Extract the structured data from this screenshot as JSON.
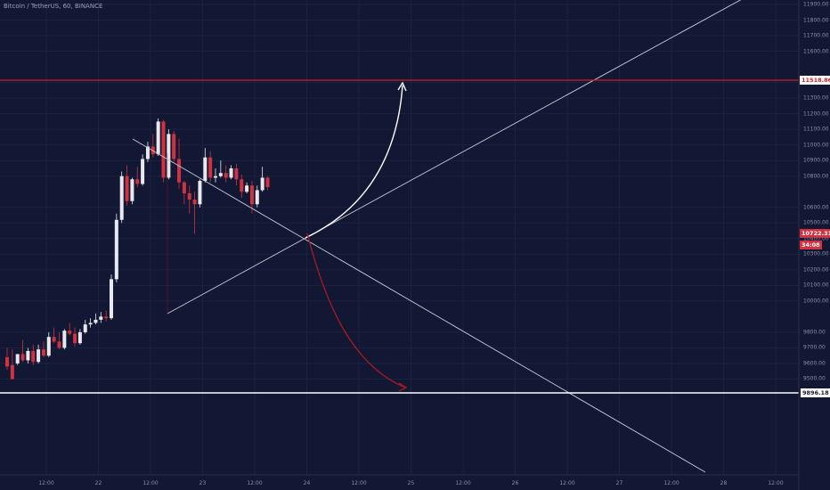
{
  "title": "Bitcoin / TetherUS, 60, BINANCE",
  "colors": {
    "background": "#121733",
    "bull": "#e7e9ef",
    "bear": "#d0333f",
    "resistance": "#c8202c",
    "support": "#ffffff",
    "trendline": "#c7cad6",
    "bull_arrow": "#ffffff",
    "bear_arrow": "#a11a22",
    "current_price_tag": "#d0333f"
  },
  "y_axis": {
    "ticks": [
      "11900.00",
      "11800.00",
      "11700.00",
      "11600.00",
      "11400.00",
      "11300.00",
      "11200.00",
      "11100.00",
      "11000.00",
      "10900.00",
      "10800.00",
      "10600.00",
      "10500.00",
      "10400.00",
      "10300.00",
      "10200.00",
      "10100.00",
      "10000.00",
      "9800.00",
      "9700.00",
      "9600.00",
      "9500.00"
    ]
  },
  "x_axis": {
    "ticks": [
      "12:00",
      "22",
      "12:00",
      "23",
      "12:00",
      "24",
      "12:00",
      "25",
      "12:00",
      "26",
      "12:00",
      "27",
      "12:00",
      "28",
      "12:00"
    ]
  },
  "levels": {
    "resistance": {
      "label": "11518.86",
      "price": 11518.86
    },
    "support": {
      "label": "9896.18",
      "price": 9896.18
    },
    "current": {
      "label": "10722.31",
      "price": 10722.31,
      "countdown": "34:08"
    }
  },
  "candles": [
    [
      9640,
      9700,
      9580,
      9560
    ],
    [
      9590,
      9690,
      9500,
      9530
    ],
    [
      9600,
      9660,
      9660,
      9590
    ],
    [
      9660,
      9750,
      9620,
      9610
    ],
    [
      9620,
      9700,
      9680,
      9600
    ],
    [
      9680,
      9720,
      9610,
      9590
    ],
    [
      9610,
      9720,
      9690,
      9600
    ],
    [
      9690,
      9740,
      9650,
      9640
    ],
    [
      9650,
      9800,
      9770,
      9640
    ],
    [
      9770,
      9830,
      9740,
      9730
    ],
    [
      9740,
      9800,
      9700,
      9690
    ],
    [
      9700,
      9820,
      9810,
      9690
    ],
    [
      9810,
      9860,
      9790,
      9780
    ],
    [
      9790,
      9830,
      9730,
      9710
    ],
    [
      9730,
      9820,
      9800,
      9720
    ],
    [
      9800,
      9880,
      9850,
      9790
    ],
    [
      9850,
      9890,
      9860,
      9830
    ],
    [
      9860,
      9920,
      9880,
      9850
    ],
    [
      9880,
      9930,
      9900,
      9860
    ],
    [
      9900,
      9940,
      9890,
      9870
    ],
    [
      9890,
      10170,
      10140,
      9880
    ],
    [
      10140,
      10560,
      10520,
      10120
    ],
    [
      10520,
      10830,
      10800,
      10500
    ],
    [
      10800,
      10870,
      10640,
      10610
    ],
    [
      10640,
      10790,
      10780,
      10620
    ],
    [
      10780,
      10860,
      10750,
      10730
    ],
    [
      10750,
      10940,
      10910,
      10740
    ],
    [
      10910,
      11020,
      10990,
      10890
    ],
    [
      10990,
      11070,
      10940,
      10920
    ],
    [
      10940,
      11170,
      11150,
      10930
    ],
    [
      11150,
      11160,
      10790,
      10760
    ],
    [
      10790,
      11100,
      11070,
      10780
    ],
    [
      11070,
      11090,
      10910,
      10890
    ],
    [
      10910,
      11040,
      10760,
      10720
    ],
    [
      10760,
      10770,
      10690,
      10620
    ],
    [
      10690,
      10740,
      10650,
      10560
    ],
    [
      10650,
      10700,
      10620,
      10430
    ],
    [
      10620,
      10780,
      10770,
      10600
    ],
    [
      10770,
      10980,
      10920,
      10760
    ],
    [
      10920,
      10960,
      10790,
      10760
    ],
    [
      10790,
      10850,
      10800,
      10760
    ],
    [
      10800,
      10900,
      10820,
      10790
    ],
    [
      10820,
      10870,
      10790,
      10760
    ],
    [
      10790,
      10870,
      10850,
      10780
    ],
    [
      10850,
      10880,
      10780,
      10740
    ],
    [
      10780,
      10810,
      10700,
      10660
    ],
    [
      10700,
      10760,
      10740,
      10690
    ],
    [
      10740,
      10770,
      10620,
      10560
    ],
    [
      10620,
      10740,
      10710,
      10600
    ],
    [
      10710,
      10860,
      10790,
      10700
    ],
    [
      10790,
      10800,
      10730,
      10710
    ]
  ]
}
